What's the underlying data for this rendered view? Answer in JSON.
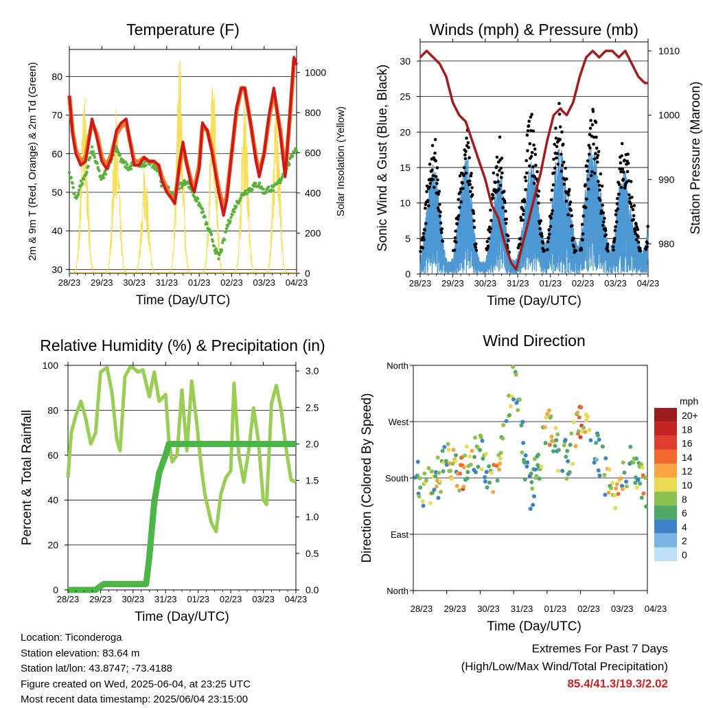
{
  "x_ticks": [
    "28/23",
    "29/23",
    "30/23",
    "31/23",
    "01/23",
    "02/23",
    "03/23",
    "04/23"
  ],
  "colors": {
    "t2m": "#cc1a1a",
    "t9m": "#f07a2a",
    "td": "#5ab23c",
    "solar": "#f7df5a",
    "wind": "#4d97d2",
    "gust": "#000000",
    "pressure": "#a11c1c",
    "rh": "#9acd55",
    "precip": "#4cb548",
    "extremes": "#cc2222"
  },
  "chart_data": [
    {
      "id": "temperature",
      "type": "line",
      "title": "Temperature (F)",
      "xlabel": "Time (Day/UTC)",
      "ylabel": "2m & 9m T (Red, Orange) & 2m Td (Green)",
      "y2label": "Solar Insolation (Yellow)",
      "ylim": [
        29,
        87
      ],
      "y2lim": [
        0,
        1114
      ],
      "yticks": [
        "30",
        "40",
        "50",
        "60",
        "70",
        "80"
      ],
      "y2ticks": [
        "0",
        "200",
        "400",
        "600",
        "800",
        "1000"
      ],
      "x": [
        0,
        0.1,
        0.2,
        0.35,
        0.5,
        0.6,
        0.7,
        0.85,
        1,
        1.15,
        1.3,
        1.45,
        1.6,
        1.75,
        1.85,
        2,
        2.15,
        2.3,
        2.45,
        2.6,
        2.75,
        2.85,
        3,
        3.1,
        3.25,
        3.4,
        3.5,
        3.6,
        3.75,
        3.85,
        4,
        4.1,
        4.25,
        4.4,
        4.5,
        4.6,
        4.75,
        4.85,
        5,
        5.15,
        5.3,
        5.4,
        5.6,
        5.75,
        5.85,
        6,
        6.15,
        6.3,
        6.5,
        6.65,
        6.8,
        6.92,
        7
      ],
      "series": [
        {
          "name": "2m T",
          "values": [
            75,
            65,
            60,
            57,
            58,
            63,
            69,
            64,
            58,
            56,
            59,
            66,
            68,
            69,
            64,
            57,
            57,
            59,
            58,
            58,
            57,
            53,
            50,
            49,
            47,
            58,
            63,
            58,
            52,
            50,
            56,
            68,
            66,
            60,
            55,
            50,
            44,
            48,
            60,
            72,
            77,
            77,
            67,
            58,
            54,
            60,
            70,
            77,
            65,
            54,
            71,
            85,
            83
          ]
        },
        {
          "name": "9m T",
          "values": [
            75,
            66,
            61,
            58,
            59,
            64,
            68,
            65,
            59,
            57,
            60,
            65,
            67,
            68,
            64,
            58,
            58,
            59,
            58,
            58,
            57,
            54,
            51,
            49,
            48,
            57,
            62,
            58,
            53,
            51,
            57,
            67,
            66,
            61,
            56,
            51,
            46,
            49,
            60,
            71,
            77,
            77,
            67,
            59,
            55,
            60,
            69,
            76,
            66,
            55,
            70,
            84,
            83
          ]
        },
        {
          "name": "2m Td",
          "values": [
            55,
            52,
            48,
            52,
            54,
            58,
            61,
            57,
            53,
            56,
            59,
            62,
            58,
            57,
            56,
            58,
            57,
            57,
            58,
            57,
            56,
            52,
            51,
            50,
            49,
            52,
            52,
            53,
            51,
            49,
            47,
            45,
            41,
            38,
            35,
            33,
            37,
            41,
            44,
            47,
            49,
            50,
            51,
            52,
            52,
            50,
            51,
            51,
            53,
            56,
            58,
            61,
            61
          ]
        }
      ],
      "solar": {
        "name": "Solar Insolation",
        "days": [
          0.46,
          1.44,
          2.33,
          3.4,
          4.43,
          5.4,
          6.38
        ],
        "peaks": [
          900,
          820,
          560,
          1090,
          1000,
          910,
          900
        ]
      }
    },
    {
      "id": "winds",
      "type": "scatter",
      "title": "Winds (mph) & Pressure (mb)",
      "xlabel": "Time (Day/UTC)",
      "ylabel": "Sonic Wind & Gust (Blue, Black)",
      "y2label": "Station Pressure (Maroon)",
      "ylim": [
        0,
        32.7
      ],
      "y2lim": [
        975.3,
        1011.4
      ],
      "yticks": [
        "0",
        "5",
        "10",
        "15",
        "20",
        "25",
        "30"
      ],
      "y2ticks": [
        "980",
        "990",
        "1000",
        "1010"
      ],
      "x": [
        0,
        0.5,
        1,
        1.5,
        2,
        2.5,
        3,
        3.5,
        4,
        4.5,
        5,
        5.5,
        6,
        6.5,
        7
      ],
      "series": [
        {
          "name": "Sonic Wind",
          "values": [
            5,
            14,
            5,
            15,
            4,
            13,
            6,
            14,
            19,
            11,
            19,
            12,
            17,
            8,
            16
          ]
        },
        {
          "name": "Gust",
          "values": [
            8,
            18,
            8,
            20,
            7,
            18,
            10,
            21,
            27,
            15,
            24,
            16,
            23,
            12,
            22
          ]
        }
      ],
      "pressure": {
        "name": "Station Pressure",
        "x": [
          0,
          0.2,
          0.4,
          0.6,
          0.8,
          1,
          1.2,
          1.4,
          1.6,
          1.8,
          2,
          2.2,
          2.4,
          2.6,
          2.8,
          2.95,
          3.1,
          3.3,
          3.5,
          3.7,
          3.9,
          4.1,
          4.3,
          4.5,
          4.7,
          4.9,
          5.1,
          5.3,
          5.5,
          5.7,
          5.9,
          6.1,
          6.3,
          6.5,
          6.7,
          6.9,
          7
        ],
        "values": [
          1009,
          1010,
          1009,
          1008,
          1006,
          1002,
          1000,
          999,
          996,
          993,
          990,
          986,
          984,
          980,
          977,
          976,
          979,
          983,
          987,
          991,
          996,
          1000,
          1001,
          1000,
          1002,
          1006,
          1009,
          1010,
          1009,
          1010,
          1010,
          1009,
          1010,
          1008,
          1006,
          1005,
          1005
        ]
      }
    },
    {
      "id": "humidity",
      "type": "line",
      "title": "Relative Humidity (%) & Precipitation (in)",
      "xlabel": "Time (Day/UTC)",
      "ylabel": "Percent & Total Rainfall",
      "ylim": [
        0,
        100
      ],
      "y2lim": [
        0,
        3.077
      ],
      "yticks": [
        "0",
        "20",
        "40",
        "60",
        "80",
        "100"
      ],
      "y2ticks": [
        "0.0",
        "0.5",
        "1.0",
        "1.5",
        "2.0",
        "2.5",
        "3.0"
      ],
      "x": [
        0,
        0.1,
        0.25,
        0.4,
        0.55,
        0.7,
        0.85,
        1,
        1.1,
        1.2,
        1.35,
        1.5,
        1.6,
        1.75,
        1.9,
        2,
        2.15,
        2.3,
        2.4,
        2.5,
        2.65,
        2.8,
        3,
        3.1,
        3.2,
        3.35,
        3.5,
        3.65,
        3.8,
        3.95,
        4.1,
        4.2,
        4.4,
        4.55,
        4.7,
        4.85,
        5,
        5.1,
        5.25,
        5.4,
        5.55,
        5.7,
        5.85,
        6,
        6.1,
        6.25,
        6.4,
        6.55,
        6.7,
        6.85,
        7
      ],
      "series": [
        {
          "name": "Relative Humidity",
          "values": [
            50,
            70,
            78,
            84,
            76,
            65,
            70,
            97,
            98,
            99,
            88,
            67,
            62,
            95,
            99,
            99,
            97,
            98,
            92,
            86,
            97,
            84,
            87,
            66,
            57,
            60,
            89,
            62,
            93,
            75,
            54,
            43,
            30,
            26,
            43,
            50,
            53,
            92,
            60,
            48,
            62,
            81,
            66,
            40,
            38,
            83,
            91,
            80,
            63,
            49,
            48
          ]
        },
        {
          "name": "Total Precipitation",
          "values": [
            0,
            0,
            0,
            0,
            0,
            0,
            0,
            0.05,
            0.08,
            0.08,
            0.08,
            0.08,
            0.08,
            0.08,
            0.08,
            0.08,
            0.08,
            0.08,
            0.08,
            0.45,
            1.2,
            1.6,
            1.85,
            2.0,
            2.0,
            2.0,
            2.0,
            2.0,
            2.0,
            2.0,
            2.0,
            2.0,
            2.0,
            2.0,
            2.0,
            2.0,
            2.0,
            2.0,
            2.0,
            2.0,
            2.0,
            2.0,
            2.0,
            2.0,
            2.0,
            2.0,
            2.0,
            2.0,
            2.0,
            2.0,
            2.0
          ]
        }
      ]
    },
    {
      "id": "direction",
      "type": "scatter",
      "title": "Wind Direction",
      "xlabel": "Time (Day/UTC)",
      "ylabel": "Direction (Colored By Speed)",
      "yticks": [
        "North",
        "East",
        "South",
        "West",
        "North"
      ],
      "legend": {
        "unit": "mph",
        "labels": [
          "20+",
          "18",
          "16",
          "14",
          "12",
          "10",
          "8",
          "6",
          "4",
          "2",
          "0"
        ],
        "colors": [
          "#9b1c1c",
          "#c42323",
          "#e03c30",
          "#f26a2e",
          "#f7a442",
          "#e8dc55",
          "#8cc14f",
          "#4fa868",
          "#3c82c4",
          "#78b5e3",
          "#bde2f7"
        ]
      },
      "x": [
        0,
        0.5,
        1,
        1.5,
        2,
        2.5,
        3,
        3.5,
        4,
        4.5,
        5,
        5.5,
        6,
        6.5,
        7
      ],
      "series": [
        {
          "name": "Direction (deg)",
          "values": [
            180,
            160,
            200,
            190,
            220,
            170,
            340,
            150,
            265,
            200,
            265,
            230,
            140,
            200,
            150
          ]
        },
        {
          "name": "Speed (mph)",
          "values": [
            6,
            12,
            9,
            13,
            8,
            12,
            8,
            5,
            14,
            6,
            14,
            5,
            14,
            6,
            14
          ]
        }
      ]
    }
  ],
  "info": {
    "location": "Location: Ticonderoga",
    "elevation": "Station elevation: 83.64 m",
    "latlon": "Station lat/lon: 43.8747; -73.4188",
    "created": "Figure created on Wed, 2025-06-04, at 23:25 UTC",
    "recent": "Most recent data timestamp: 2025/06/04 23:15:00"
  },
  "extremes": {
    "title": "Extremes For Past 7 Days",
    "subtitle": "(High/Low/Max Wind/Total Precipitation)",
    "values": "85.4/41.3/19.3/2.02"
  }
}
